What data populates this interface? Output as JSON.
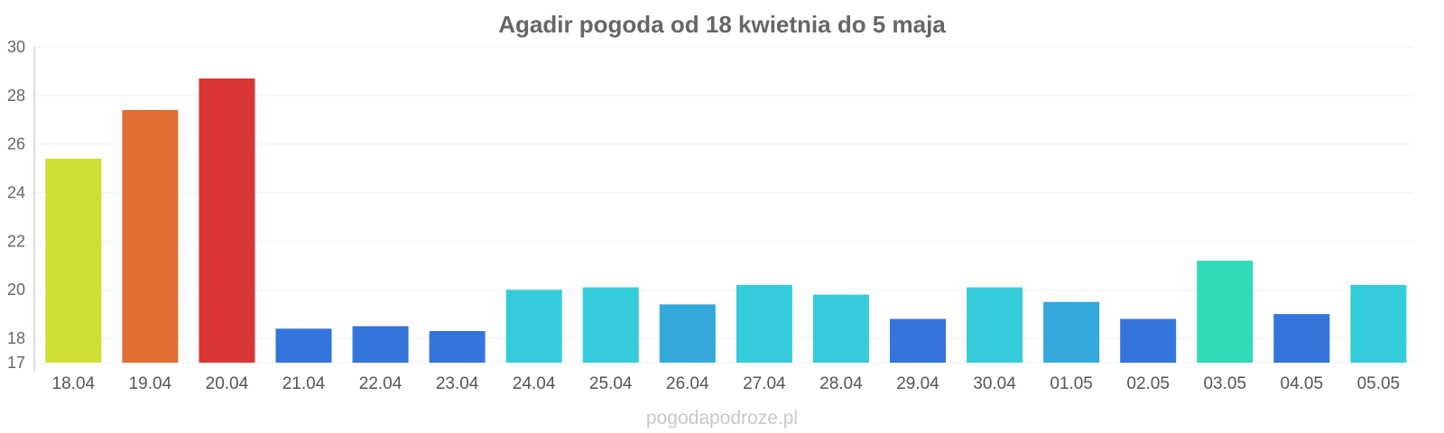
{
  "chart_data": {
    "type": "bar",
    "title": "Agadir pogoda od 18 kwietnia do 5 maja",
    "xlabel": "",
    "ylabel": "",
    "ylim": [
      17,
      30
    ],
    "yticks": [
      30,
      28,
      26,
      24,
      22,
      20,
      18,
      17
    ],
    "grid": true,
    "categories": [
      "18.04",
      "19.04",
      "20.04",
      "21.04",
      "22.04",
      "23.04",
      "24.04",
      "25.04",
      "26.04",
      "27.04",
      "28.04",
      "29.04",
      "30.04",
      "01.05",
      "02.05",
      "03.05",
      "04.05",
      "05.05"
    ],
    "values": [
      25.4,
      27.4,
      28.7,
      18.4,
      18.5,
      18.3,
      20.0,
      20.1,
      19.4,
      20.2,
      19.8,
      18.8,
      20.1,
      19.5,
      18.8,
      21.2,
      19.0,
      20.2
    ],
    "colors": [
      "#cfdf33",
      "#df6f33",
      "#dc3535",
      "#3375db",
      "#3375db",
      "#3375db",
      "#34ccdb",
      "#34ccdb",
      "#34a8db",
      "#34ccdb",
      "#34ccdb",
      "#3375db",
      "#34ccdb",
      "#34a8db",
      "#3375db",
      "#32dbb8",
      "#3375db",
      "#34ccdb"
    ]
  },
  "footer": "pogodapodroze.pl"
}
